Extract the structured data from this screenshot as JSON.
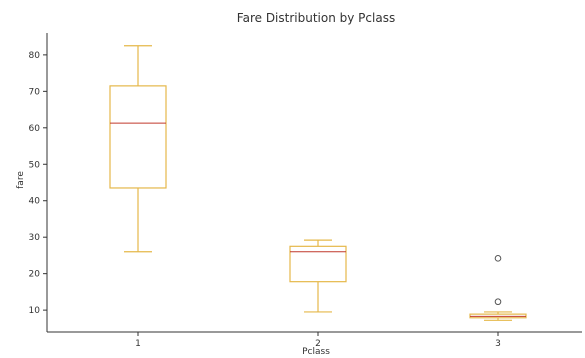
{
  "chart_data": {
    "type": "box",
    "title": "Fare Distribution by Pclass",
    "xlabel": "Pclass",
    "ylabel": "fare",
    "categories": [
      "1",
      "2",
      "3"
    ],
    "ylim": [
      4,
      86
    ],
    "yticks": [
      10,
      20,
      30,
      40,
      50,
      60,
      70,
      80
    ],
    "boxes": [
      {
        "category": "1",
        "whisker_low": 26,
        "q1": 43.5,
        "median": 61.3,
        "q3": 71.5,
        "whisker_high": 82.5,
        "outliers": []
      },
      {
        "category": "2",
        "whisker_low": 9.5,
        "q1": 17.8,
        "median": 26.0,
        "q3": 27.5,
        "whisker_high": 29.2,
        "outliers": []
      },
      {
        "category": "3",
        "whisker_low": 7.2,
        "q1": 7.9,
        "median": 8.3,
        "q3": 8.9,
        "whisker_high": 9.5,
        "outliers": [
          12.3,
          24.2
        ]
      }
    ],
    "grid": false,
    "colors": {
      "box": "#e5b84a",
      "median": "#c0392b",
      "outlier": "#555555",
      "axis": "#333333"
    }
  }
}
